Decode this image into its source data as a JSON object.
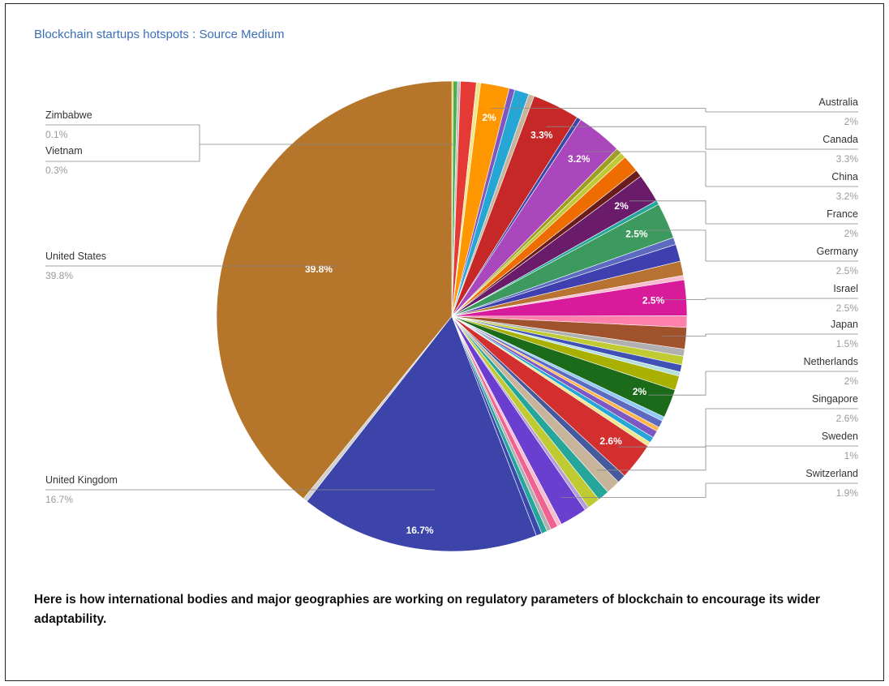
{
  "page": {
    "note": "Here is how international bodies and major geographies are working on regulatory parameters of blockchain to encourage its wider adaptability."
  },
  "chart_data": {
    "type": "pie",
    "title": "Blockchain startups hotspots : Source Medium",
    "slices": [
      {
        "name": "Zimbabwe",
        "value": 0.1,
        "color": "#f4b400",
        "label": ""
      },
      {
        "name": "Vietnam",
        "value": 0.3,
        "color": "#4caf50",
        "label": ""
      },
      {
        "name": "",
        "value": 0.2,
        "color": "#c0c0c0",
        "label": ""
      },
      {
        "name": "",
        "value": 1.1,
        "color": "#e53935",
        "label": ""
      },
      {
        "name": "",
        "value": 0.3,
        "color": "#f0e68c",
        "label": ""
      },
      {
        "name": "Australia",
        "value": 2.0,
        "color": "#ff9800",
        "label": "2%"
      },
      {
        "name": "",
        "value": 0.4,
        "color": "#7e57c2",
        "label": ""
      },
      {
        "name": "",
        "value": 1.0,
        "color": "#26a6d4",
        "label": ""
      },
      {
        "name": "",
        "value": 0.4,
        "color": "#c8b49a",
        "label": ""
      },
      {
        "name": "Canada",
        "value": 3.3,
        "color": "#c62828",
        "label": "3.3%"
      },
      {
        "name": "",
        "value": 0.3,
        "color": "#3949ab",
        "label": ""
      },
      {
        "name": "China",
        "value": 3.2,
        "color": "#ab47bc",
        "label": "3.2%"
      },
      {
        "name": "",
        "value": 0.4,
        "color": "#9e9d24",
        "label": ""
      },
      {
        "name": "",
        "value": 0.4,
        "color": "#c0ca33",
        "label": ""
      },
      {
        "name": "",
        "value": 1.2,
        "color": "#ef6c00",
        "label": ""
      },
      {
        "name": "",
        "value": 0.5,
        "color": "#6a1b1b",
        "label": ""
      },
      {
        "name": "France",
        "value": 2.0,
        "color": "#6a1b6a",
        "label": "2%"
      },
      {
        "name": "",
        "value": 0.3,
        "color": "#26a69a",
        "label": ""
      },
      {
        "name": "Germany",
        "value": 2.5,
        "color": "#3c9a5f",
        "label": "2.5%"
      },
      {
        "name": "",
        "value": 0.5,
        "color": "#5c6bc0",
        "label": ""
      },
      {
        "name": "",
        "value": 1.2,
        "color": "#3f3fb0",
        "label": ""
      },
      {
        "name": "",
        "value": 1.0,
        "color": "#b87333",
        "label": ""
      },
      {
        "name": "",
        "value": 0.3,
        "color": "#f8bbd0",
        "label": ""
      },
      {
        "name": "Israel",
        "value": 2.5,
        "color": "#d81b9a",
        "label": "2.5%"
      },
      {
        "name": "",
        "value": 0.8,
        "color": "#ff80ab",
        "label": ""
      },
      {
        "name": "Japan",
        "value": 1.5,
        "color": "#a0522d",
        "label": ""
      },
      {
        "name": "",
        "value": 0.5,
        "color": "#b0b0b0",
        "label": ""
      },
      {
        "name": "",
        "value": 0.6,
        "color": "#c0ca33",
        "label": ""
      },
      {
        "name": "",
        "value": 0.5,
        "color": "#3f51b5",
        "label": ""
      },
      {
        "name": "",
        "value": 0.3,
        "color": "#b2dfdb",
        "label": ""
      },
      {
        "name": "",
        "value": 1.0,
        "color": "#aab000",
        "label": ""
      },
      {
        "name": "Netherlands",
        "value": 2.0,
        "color": "#1b6b1b",
        "label": "2%"
      },
      {
        "name": "",
        "value": 0.3,
        "color": "#90caf9",
        "label": ""
      },
      {
        "name": "",
        "value": 0.5,
        "color": "#5c6bc0",
        "label": ""
      },
      {
        "name": "",
        "value": 0.3,
        "color": "#ffb74d",
        "label": ""
      },
      {
        "name": "",
        "value": 0.5,
        "color": "#7e57c2",
        "label": ""
      },
      {
        "name": "",
        "value": 0.4,
        "color": "#26a6d4",
        "label": ""
      },
      {
        "name": "",
        "value": 0.3,
        "color": "#f0e68c",
        "label": ""
      },
      {
        "name": "Singapore",
        "value": 2.6,
        "color": "#d32f2f",
        "label": "2.6%"
      },
      {
        "name": "",
        "value": 0.6,
        "color": "#455a9c",
        "label": ""
      },
      {
        "name": "Sweden",
        "value": 1.0,
        "color": "#c8b49a",
        "label": ""
      },
      {
        "name": "",
        "value": 0.8,
        "color": "#26a69a",
        "label": ""
      },
      {
        "name": "",
        "value": 0.9,
        "color": "#c0ca33",
        "label": ""
      },
      {
        "name": "",
        "value": 0.3,
        "color": "#b39ddb",
        "label": ""
      },
      {
        "name": "Switzerland",
        "value": 1.9,
        "color": "#6a3fd0",
        "label": ""
      },
      {
        "name": "",
        "value": 0.3,
        "color": "#f8bbd0",
        "label": ""
      },
      {
        "name": "",
        "value": 0.5,
        "color": "#f06292",
        "label": ""
      },
      {
        "name": "",
        "value": 0.3,
        "color": "#b0b0b0",
        "label": ""
      },
      {
        "name": "",
        "value": 0.4,
        "color": "#26a69a",
        "label": ""
      },
      {
        "name": "",
        "value": 0.4,
        "color": "#3949ab",
        "label": ""
      },
      {
        "name": "United Kingdom",
        "value": 16.7,
        "color": "#3c44aa",
        "label": "16.7%"
      },
      {
        "name": "",
        "value": 0.3,
        "color": "#d0d0d0",
        "label": ""
      },
      {
        "name": "United States",
        "value": 39.8,
        "color": "#b5762c",
        "label": "39.8%"
      }
    ],
    "legend_left": [
      {
        "name": "Zimbabwe",
        "pct": "0.1%"
      },
      {
        "name": "Vietnam",
        "pct": "0.3%"
      },
      {
        "name": "United States",
        "pct": "39.8%"
      },
      {
        "name": "United Kingdom",
        "pct": "16.7%"
      }
    ],
    "legend_right": [
      {
        "name": "Australia",
        "pct": "2%"
      },
      {
        "name": "Canada",
        "pct": "3.3%"
      },
      {
        "name": "China",
        "pct": "3.2%"
      },
      {
        "name": "France",
        "pct": "2%"
      },
      {
        "name": "Germany",
        "pct": "2.5%"
      },
      {
        "name": "Israel",
        "pct": "2.5%"
      },
      {
        "name": "Japan",
        "pct": "1.5%"
      },
      {
        "name": "Netherlands",
        "pct": "2%"
      },
      {
        "name": "Singapore",
        "pct": "2.6%"
      },
      {
        "name": "Sweden",
        "pct": "1%"
      },
      {
        "name": "Switzerland",
        "pct": "1.9%"
      }
    ]
  }
}
